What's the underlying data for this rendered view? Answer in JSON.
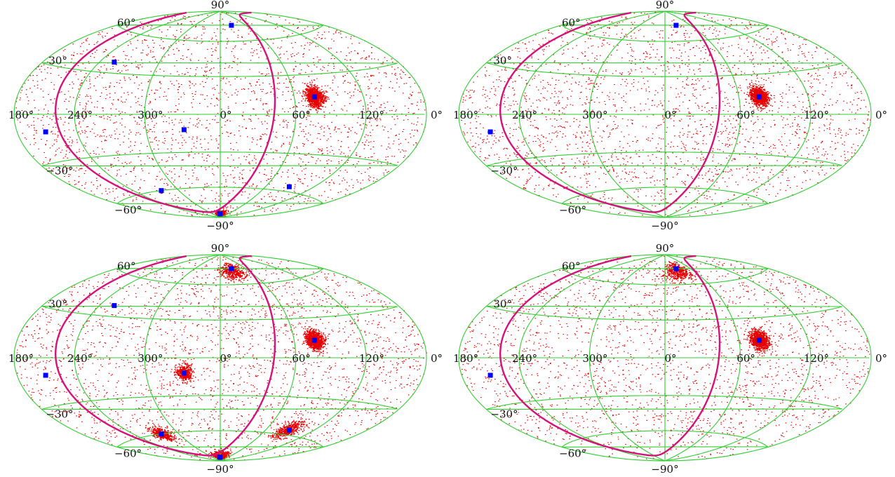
{
  "figure": {
    "projection": "hammer-aitoff",
    "grid_color": "#33cc33",
    "curve_color": "#d4127a",
    "marker_color": "#0000ff",
    "scatter_color": "#e60000",
    "labels": {
      "lat_north": "90°",
      "lat_south": "−90°",
      "lat_60": "60°",
      "lat_30": "30°",
      "lat_m30": "−30°",
      "lat_m60": "−60°",
      "lon_180": "180°",
      "lon_240": "240°",
      "lon_300": "300°",
      "lon_0": "0°",
      "lon_60": "60°",
      "lon_120": "120°",
      "edge_0": "0°"
    }
  },
  "chart_data": [
    {
      "type": "scatter",
      "panel": "top-left",
      "markers": [
        {
          "lon": 333,
          "lat": 75
        },
        {
          "lon": 105,
          "lat": 38
        },
        {
          "lon": 150,
          "lat": -11
        },
        {
          "lon": 29,
          "lat": -12
        },
        {
          "lon": 270,
          "lat": -56
        },
        {
          "lon": 84,
          "lat": -60
        },
        {
          "lon": 2,
          "lat": -86
        },
        {
          "lon": 283,
          "lat": 13
        }
      ],
      "clusters": [
        {
          "lon": 283,
          "lat": 13,
          "spread": 3.5
        },
        {
          "lon": 0,
          "lat": -89,
          "spread": 3
        }
      ],
      "show_lower_sources": true
    },
    {
      "type": "scatter",
      "panel": "top-right",
      "markers": [
        {
          "lon": 333,
          "lat": 75
        },
        {
          "lon": 150,
          "lat": -11
        },
        {
          "lon": 283,
          "lat": 13
        }
      ],
      "clusters": [
        {
          "lon": 283,
          "lat": 13,
          "spread": 3.5
        }
      ],
      "show_lower_sources": false
    },
    {
      "type": "scatter",
      "panel": "bottom-left",
      "markers": [
        {
          "lon": 333,
          "lat": 75
        },
        {
          "lon": 105,
          "lat": 38
        },
        {
          "lon": 150,
          "lat": -11
        },
        {
          "lon": 29,
          "lat": -12
        },
        {
          "lon": 270,
          "lat": -56
        },
        {
          "lon": 84,
          "lat": -60
        },
        {
          "lon": 2,
          "lat": -86
        },
        {
          "lon": 283,
          "lat": 13
        }
      ],
      "clusters": [
        {
          "lon": 283,
          "lat": 13,
          "spread": 3.5
        },
        {
          "lon": 335,
          "lat": 72,
          "spread": 4
        },
        {
          "lon": 29,
          "lat": -12,
          "spread": 3
        },
        {
          "lon": 272,
          "lat": -56,
          "spread": 4
        },
        {
          "lon": 84,
          "lat": -60,
          "spread": 3
        },
        {
          "lon": 2,
          "lat": -86,
          "spread": 3
        }
      ],
      "show_lower_sources": true
    },
    {
      "type": "scatter",
      "panel": "bottom-right",
      "markers": [
        {
          "lon": 333,
          "lat": 75
        },
        {
          "lon": 150,
          "lat": -11
        },
        {
          "lon": 283,
          "lat": 13
        }
      ],
      "clusters": [
        {
          "lon": 283,
          "lat": 13,
          "spread": 3.5
        },
        {
          "lon": 335,
          "lat": 72,
          "spread": 4
        }
      ],
      "show_lower_sources": false
    }
  ]
}
